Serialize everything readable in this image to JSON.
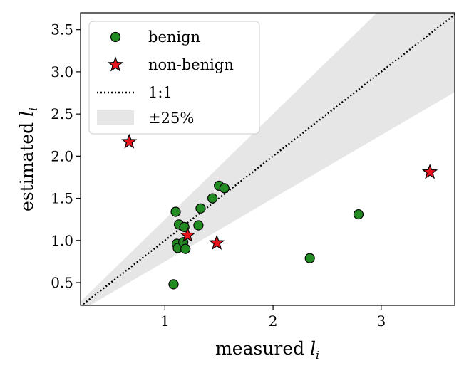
{
  "chart_data": {
    "type": "scatter",
    "title": "",
    "xlabel": "measured",
    "xlabel_var": "l",
    "xlabel_sub": "i",
    "ylabel": "estimated",
    "ylabel_var": "l",
    "ylabel_sub": "i",
    "xlim": [
      0.22,
      3.68
    ],
    "ylim": [
      0.23,
      3.7
    ],
    "xticks": [
      1,
      2,
      3
    ],
    "xtick_labels": [
      "1",
      "2",
      "3"
    ],
    "yticks": [
      0.5,
      1.0,
      1.5,
      2.0,
      2.5,
      3.0,
      3.5
    ],
    "ytick_labels": [
      "0.5",
      "1.0",
      "1.5",
      "2.0",
      "2.5",
      "3.0",
      "3.5"
    ],
    "grid": false,
    "legend_position": "top-left",
    "reference_line": {
      "label": "1:1",
      "slope": 1
    },
    "band": {
      "label": "±25%",
      "lower_factor": 0.75,
      "upper_factor": 1.25,
      "color": "#e6e6e6"
    },
    "series": [
      {
        "name": "benign",
        "marker": "circle",
        "color": "#228b22",
        "points": [
          [
            1.08,
            0.48
          ],
          [
            1.1,
            1.34
          ],
          [
            1.13,
            1.19
          ],
          [
            1.18,
            1.16
          ],
          [
            1.11,
            0.96
          ],
          [
            1.12,
            0.91
          ],
          [
            1.17,
            0.98
          ],
          [
            1.19,
            0.9
          ],
          [
            1.31,
            1.18
          ],
          [
            1.33,
            1.38
          ],
          [
            1.44,
            1.5
          ],
          [
            1.5,
            1.65
          ],
          [
            1.55,
            1.62
          ],
          [
            2.34,
            0.79
          ],
          [
            2.79,
            1.31
          ]
        ]
      },
      {
        "name": "non-benign",
        "marker": "star",
        "color": "#e8141b",
        "points": [
          [
            0.67,
            2.17
          ],
          [
            1.21,
            1.06
          ],
          [
            1.48,
            0.97
          ],
          [
            3.45,
            1.81
          ]
        ]
      }
    ]
  }
}
